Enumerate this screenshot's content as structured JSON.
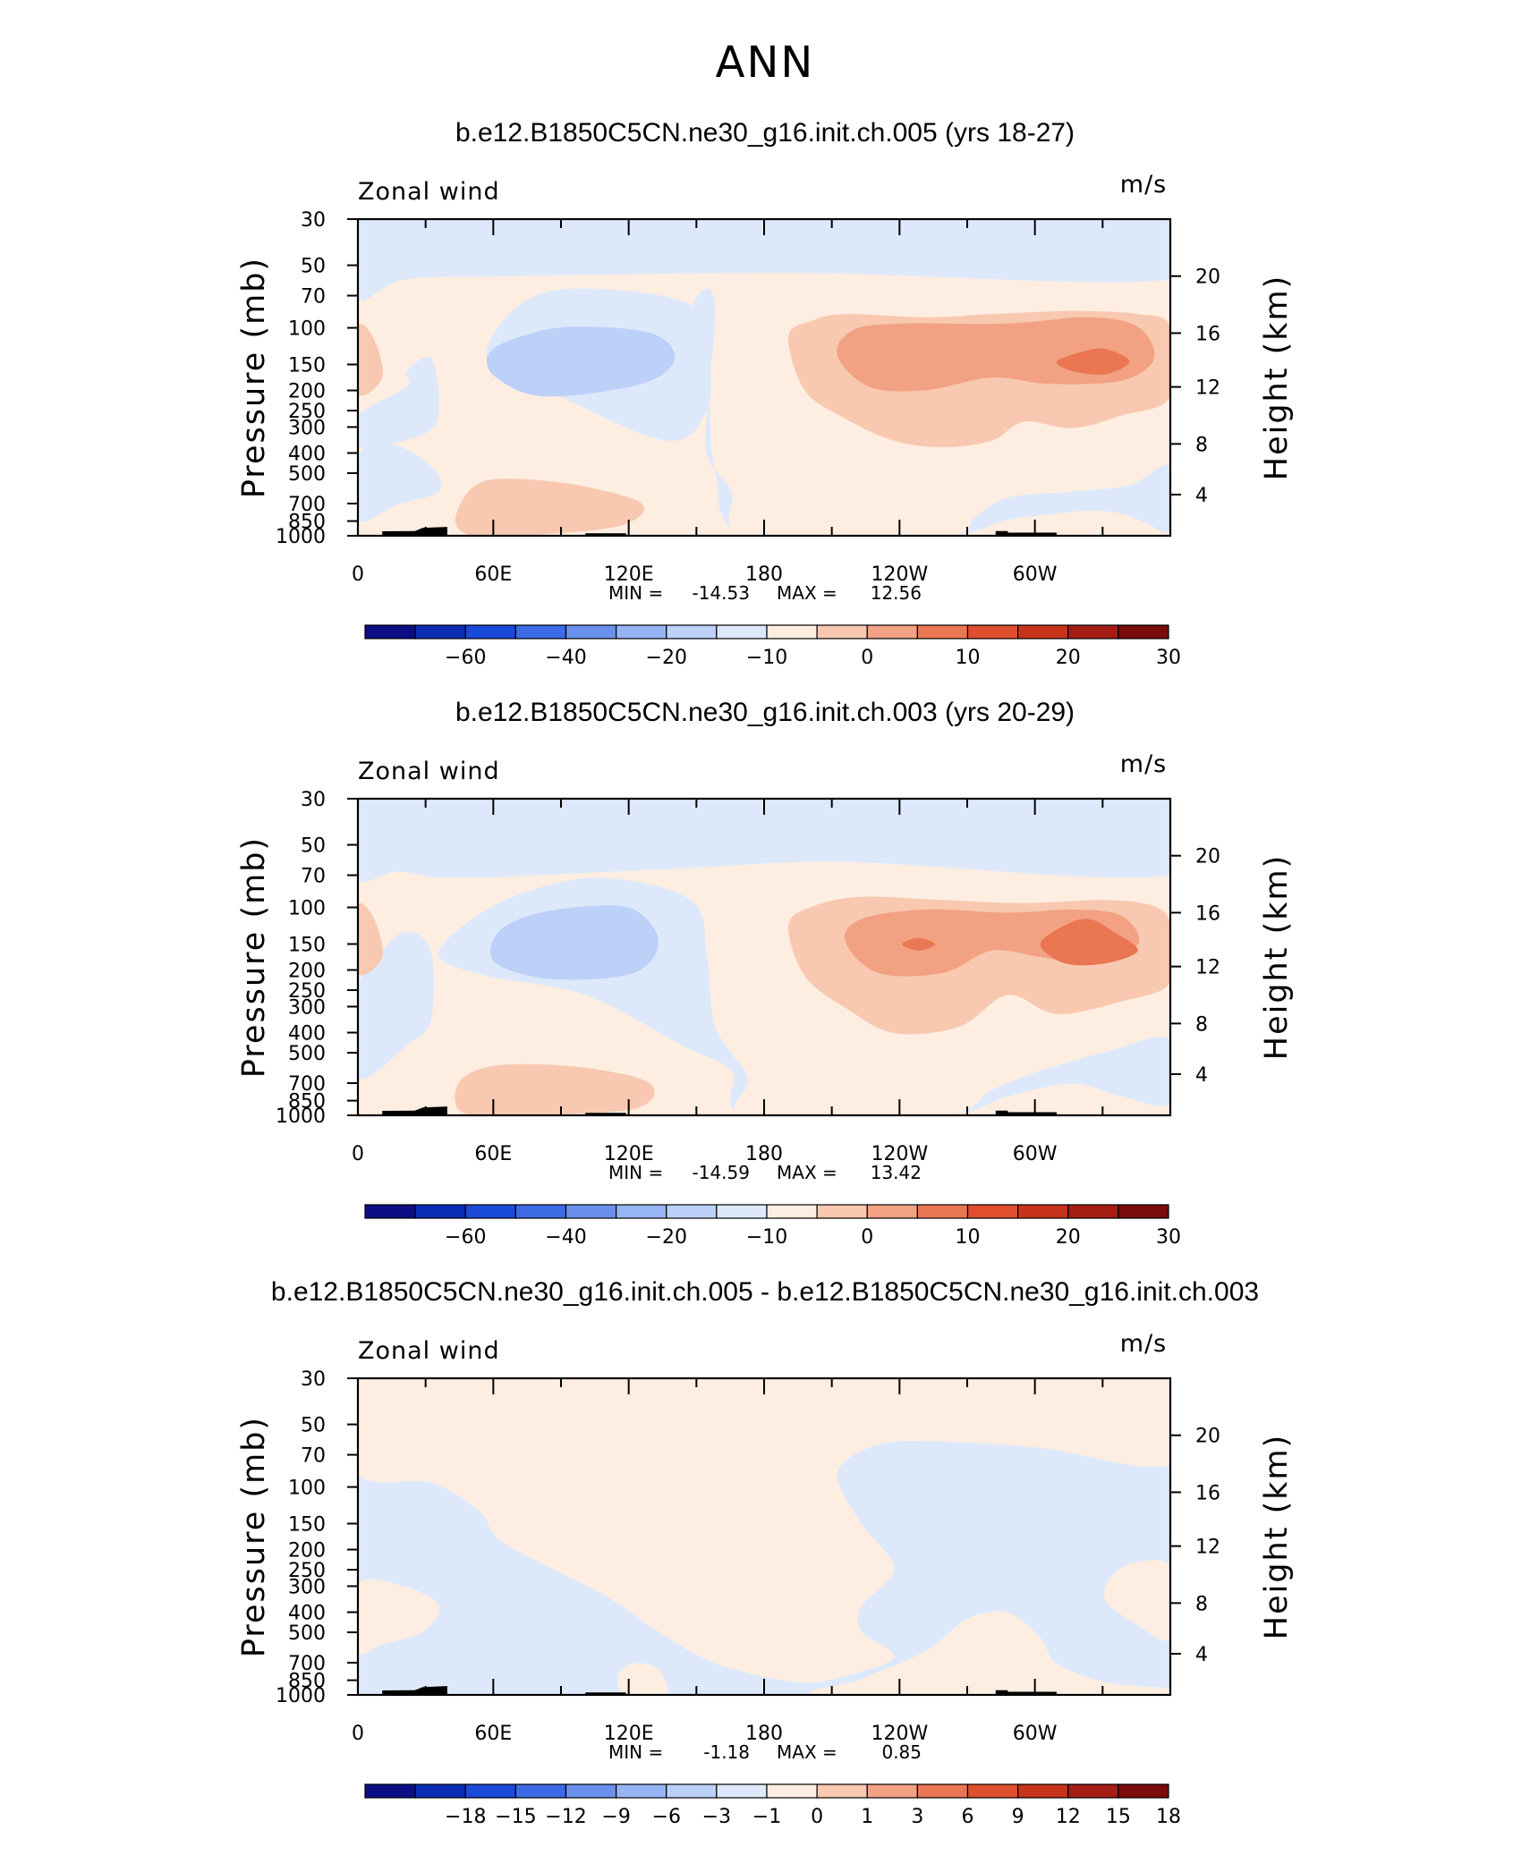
{
  "figure": {
    "title": "ANN"
  },
  "colors": {
    "abs_scale": [
      "#0b0e84",
      "#0b2cb4",
      "#1a4ad8",
      "#3d6be6",
      "#6a90ee",
      "#97b4f4",
      "#bcd0f8",
      "#dde9fb",
      "#fdeee1",
      "#f8c8b0",
      "#f2a182",
      "#ea7653",
      "#df4f2d",
      "#c8341b",
      "#a51d13",
      "#7a0c0c"
    ],
    "diff_scale": [
      "#0b0e84",
      "#0b2cb4",
      "#1a4ad8",
      "#3d6be6",
      "#6a90ee",
      "#97b4f4",
      "#bcd0f8",
      "#dde9fb",
      "#fdeee1",
      "#f8c8b0",
      "#f2a182",
      "#ea7653",
      "#df4f2d",
      "#c8341b",
      "#a51d13",
      "#7a0c0c"
    ]
  },
  "chart_data": [
    {
      "type": "contour",
      "title": "b.e12.B1850C5CN.ne30_g16.init.ch.005 (yrs 18-27)",
      "left_label": "Zonal wind",
      "units": "m/s",
      "ylabel": "Pressure (mb)",
      "y2label": "Height (km)",
      "x_ticks": [
        "0",
        "60E",
        "120E",
        "180",
        "120W",
        "60W"
      ],
      "y_ticks": [
        "30",
        "50",
        "70",
        "100",
        "150",
        "200",
        "250",
        "300",
        "400",
        "500",
        "700",
        "850",
        "1000"
      ],
      "y2_ticks": [
        "20",
        "16",
        "12",
        "8",
        "4"
      ],
      "min_label": "MIN =",
      "min_value": "-14.53",
      "max_label": "MAX =",
      "max_value": "12.56",
      "colorbar_labels": [
        "-60",
        "-40",
        "-20",
        "-10",
        "0",
        "10",
        "20",
        "30"
      ],
      "colorbar_label_boxes": [
        1,
        3,
        5,
        7,
        9,
        11,
        13,
        15
      ],
      "ylim": [
        1000,
        30
      ],
      "xlim": [
        0,
        360
      ]
    },
    {
      "type": "contour",
      "title": "b.e12.B1850C5CN.ne30_g16.init.ch.003 (yrs 20-29)",
      "left_label": "Zonal wind",
      "units": "m/s",
      "ylabel": "Pressure (mb)",
      "y2label": "Height (km)",
      "x_ticks": [
        "0",
        "60E",
        "120E",
        "180",
        "120W",
        "60W"
      ],
      "y_ticks": [
        "30",
        "50",
        "70",
        "100",
        "150",
        "200",
        "250",
        "300",
        "400",
        "500",
        "700",
        "850",
        "1000"
      ],
      "y2_ticks": [
        "20",
        "16",
        "12",
        "8",
        "4"
      ],
      "min_label": "MIN =",
      "min_value": "-14.59",
      "max_label": "MAX =",
      "max_value": "13.42",
      "colorbar_labels": [
        "-60",
        "-40",
        "-20",
        "-10",
        "0",
        "10",
        "20",
        "30"
      ],
      "colorbar_label_boxes": [
        1,
        3,
        5,
        7,
        9,
        11,
        13,
        15
      ],
      "ylim": [
        1000,
        30
      ],
      "xlim": [
        0,
        360
      ]
    },
    {
      "type": "contour",
      "title": "b.e12.B1850C5CN.ne30_g16.init.ch.005 - b.e12.B1850C5CN.ne30_g16.init.ch.003",
      "left_label": "Zonal wind",
      "units": "m/s",
      "ylabel": "Pressure (mb)",
      "y2label": "Height (km)",
      "x_ticks": [
        "0",
        "60E",
        "120E",
        "180",
        "120W",
        "60W"
      ],
      "y_ticks": [
        "30",
        "50",
        "70",
        "100",
        "150",
        "200",
        "250",
        "300",
        "400",
        "500",
        "700",
        "850",
        "1000"
      ],
      "y2_ticks": [
        "20",
        "16",
        "12",
        "8",
        "4"
      ],
      "min_label": "MIN =",
      "min_value": "-1.18",
      "max_label": "MAX =",
      "max_value": "0.85",
      "colorbar_labels": [
        "-18",
        "-15",
        "-12",
        "-9",
        "-6",
        "-3",
        "-1",
        "0",
        "1",
        "3",
        "6",
        "9",
        "12",
        "15",
        "18"
      ],
      "colorbar_label_boxes": [
        1,
        2,
        3,
        4,
        5,
        6,
        7,
        8,
        9,
        10,
        11,
        12,
        13,
        14,
        15
      ],
      "ylim": [
        1000,
        30
      ],
      "xlim": [
        0,
        360
      ]
    }
  ]
}
